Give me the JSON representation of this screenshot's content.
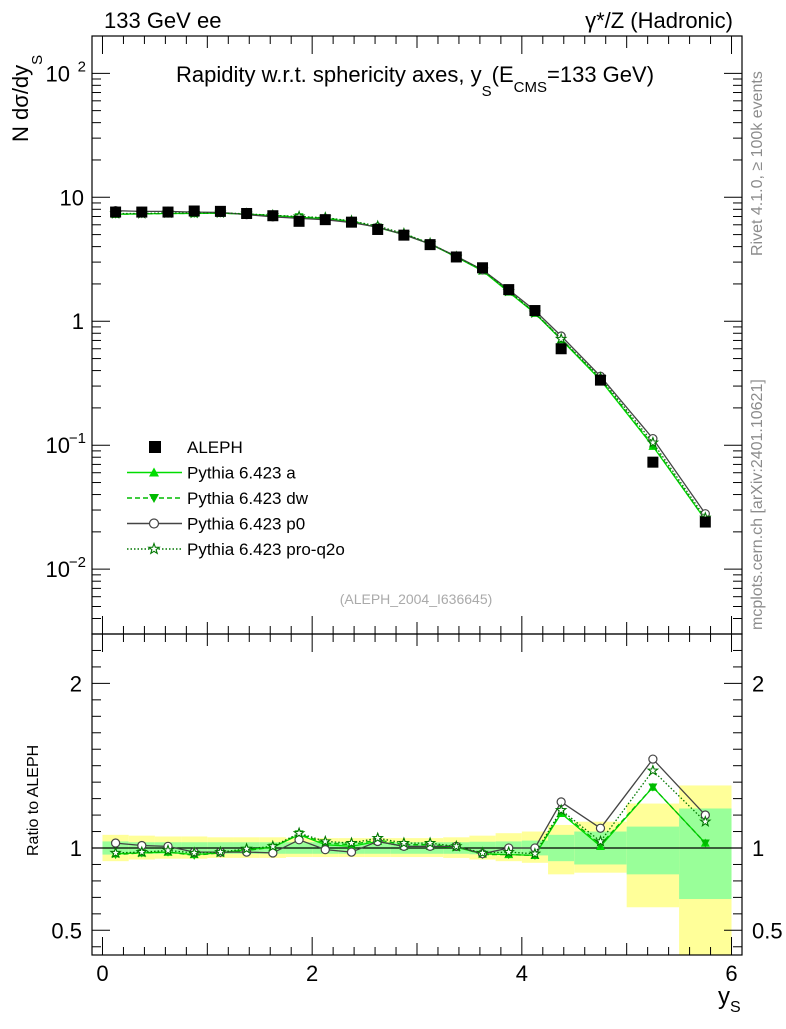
{
  "header": {
    "left": "133 GeV ee",
    "right": "γ*/Z (Hadronic)"
  },
  "side_labels": {
    "rivet": "Rivet 4.1.0, ≥ 100k events",
    "mcplots": "mcplots.cern.ch [arXiv:2401.10621]"
  },
  "chart_data": [
    {
      "type": "scatter",
      "title": "Rapidity w.r.t. sphericity axes, y_S (E_CMS=133 GeV)",
      "title_parts": {
        "main": "Rapidity w.r.t. sphericity axes, y",
        "sub_s": "S",
        "open": "(E",
        "sub_cms": "CMS",
        "close": "=133 GeV)"
      },
      "ylabel": "N  dσ/dy_S",
      "ylabel_parts": {
        "main": "N  dσ/dy",
        "sub": "S"
      },
      "yscale": "log",
      "ylim": [
        0.003,
        200
      ],
      "xlim": [
        -0.1,
        6.1
      ],
      "y_ticks": [
        0.01,
        0.1,
        1,
        10,
        100
      ],
      "y_tick_labels": [
        {
          "base": "10",
          "exp": "−2"
        },
        {
          "base": "10",
          "exp": "−1"
        },
        {
          "base": "1",
          "exp": ""
        },
        {
          "base": "10",
          "exp": ""
        },
        {
          "base": "10",
          "exp": "2"
        }
      ],
      "watermark": "(ALEPH_2004_I636645)",
      "legend_position": "lower-left",
      "x": [
        0.125,
        0.375,
        0.625,
        0.875,
        1.125,
        1.375,
        1.625,
        1.875,
        2.125,
        2.375,
        2.625,
        2.875,
        3.125,
        3.375,
        3.625,
        3.875,
        4.125,
        4.375,
        4.75,
        5.25,
        5.75
      ],
      "series": [
        {
          "name": "ALEPH",
          "style": "data",
          "values": [
            7.6,
            7.6,
            7.6,
            7.75,
            7.7,
            7.4,
            7.1,
            6.4,
            6.6,
            6.3,
            5.5,
            4.95,
            4.15,
            3.3,
            2.7,
            1.8,
            1.22,
            0.6,
            0.335,
            0.073,
            0.024
          ]
        },
        {
          "name": "Pythia 6.423 a",
          "style": "a",
          "color": "#00dd00",
          "values": [
            7.3,
            7.35,
            7.4,
            7.4,
            7.45,
            7.3,
            7.1,
            6.9,
            6.7,
            6.35,
            5.7,
            5.0,
            4.2,
            3.3,
            2.55,
            1.72,
            1.16,
            0.71,
            0.335,
            0.098,
            0.025
          ]
        },
        {
          "name": "Pythia 6.423 dw",
          "style": "dw",
          "color": "#00bb00",
          "values": [
            7.3,
            7.35,
            7.4,
            7.4,
            7.45,
            7.3,
            7.15,
            6.95,
            6.8,
            6.4,
            5.75,
            5.05,
            4.25,
            3.3,
            2.58,
            1.75,
            1.17,
            0.72,
            0.34,
            0.1,
            0.025
          ]
        },
        {
          "name": "Pythia 6.423 p0",
          "style": "p0",
          "color": "#444444",
          "values": [
            7.8,
            7.7,
            7.7,
            7.6,
            7.55,
            7.25,
            6.95,
            6.75,
            6.6,
            6.25,
            5.75,
            5.0,
            4.2,
            3.35,
            2.6,
            1.8,
            1.22,
            0.76,
            0.36,
            0.113,
            0.028
          ]
        },
        {
          "name": "Pythia 6.423 pro-q2o",
          "style": "q2o",
          "color": "#007700",
          "values": [
            7.4,
            7.4,
            7.5,
            7.45,
            7.5,
            7.35,
            7.15,
            7.0,
            6.85,
            6.45,
            5.85,
            5.1,
            4.25,
            3.3,
            2.6,
            1.75,
            1.17,
            0.72,
            0.35,
            0.105,
            0.026
          ]
        }
      ]
    },
    {
      "type": "scatter",
      "title": "",
      "ylabel": "Ratio to ALEPH",
      "xlabel": "y_S",
      "xlabel_parts": {
        "main": "y",
        "sub": "S"
      },
      "ylim": [
        0.35,
        2.3
      ],
      "xlim": [
        -0.1,
        6.1
      ],
      "x_ticks": [
        0,
        2,
        4,
        6
      ],
      "x_tick_labels": [
        "0",
        "2",
        "4",
        "6"
      ],
      "y_ticks": [
        0.5,
        1,
        2
      ],
      "y_tick_labels": [
        "0.5",
        "1",
        "2"
      ],
      "x": [
        0.125,
        0.375,
        0.625,
        0.875,
        1.125,
        1.375,
        1.625,
        1.875,
        2.125,
        2.375,
        2.625,
        2.875,
        3.125,
        3.375,
        3.625,
        3.875,
        4.125,
        4.375,
        4.75,
        5.25,
        5.75
      ],
      "bins": [
        [
          0,
          0.25
        ],
        [
          0.25,
          0.5
        ],
        [
          0.5,
          0.75
        ],
        [
          0.75,
          1.0
        ],
        [
          1.0,
          1.25
        ],
        [
          1.25,
          1.5
        ],
        [
          1.5,
          1.75
        ],
        [
          1.75,
          2.0
        ],
        [
          2.0,
          2.25
        ],
        [
          2.25,
          2.5
        ],
        [
          2.5,
          2.75
        ],
        [
          2.75,
          3.0
        ],
        [
          3.0,
          3.25
        ],
        [
          3.25,
          3.5
        ],
        [
          3.5,
          3.75
        ],
        [
          3.75,
          4.0
        ],
        [
          4.0,
          4.25
        ],
        [
          4.25,
          4.5
        ],
        [
          4.5,
          5.0
        ],
        [
          5.0,
          5.5
        ],
        [
          5.5,
          6.0
        ]
      ],
      "band_stat": [
        [
          0.96,
          1.04
        ],
        [
          0.965,
          1.035
        ],
        [
          0.965,
          1.035
        ],
        [
          0.965,
          1.035
        ],
        [
          0.965,
          1.035
        ],
        [
          0.965,
          1.035
        ],
        [
          0.965,
          1.035
        ],
        [
          0.965,
          1.035
        ],
        [
          0.965,
          1.035
        ],
        [
          0.965,
          1.035
        ],
        [
          0.965,
          1.035
        ],
        [
          0.965,
          1.035
        ],
        [
          0.965,
          1.035
        ],
        [
          0.965,
          1.035
        ],
        [
          0.962,
          1.038
        ],
        [
          0.96,
          1.04
        ],
        [
          0.955,
          1.045
        ],
        [
          0.92,
          1.08
        ],
        [
          0.9,
          1.1
        ],
        [
          0.84,
          1.13
        ],
        [
          0.69,
          1.24
        ]
      ],
      "band_total": [
        [
          0.92,
          1.08
        ],
        [
          0.93,
          1.075
        ],
        [
          0.935,
          1.07
        ],
        [
          0.935,
          1.07
        ],
        [
          0.94,
          1.065
        ],
        [
          0.94,
          1.065
        ],
        [
          0.94,
          1.065
        ],
        [
          0.945,
          1.06
        ],
        [
          0.945,
          1.06
        ],
        [
          0.945,
          1.06
        ],
        [
          0.945,
          1.06
        ],
        [
          0.945,
          1.06
        ],
        [
          0.945,
          1.06
        ],
        [
          0.94,
          1.065
        ],
        [
          0.93,
          1.075
        ],
        [
          0.92,
          1.09
        ],
        [
          0.91,
          1.1
        ],
        [
          0.84,
          1.14
        ],
        [
          0.85,
          1.16
        ],
        [
          0.64,
          1.27
        ],
        [
          0.35,
          1.38
        ]
      ],
      "series": [
        {
          "name": "Pythia 6.423 a",
          "style": "a",
          "color": "#00dd00",
          "values": [
            0.965,
            0.97,
            0.975,
            0.96,
            0.97,
            0.99,
            1.005,
            1.08,
            1.02,
            1.01,
            1.04,
            1.01,
            1.01,
            1.005,
            0.965,
            0.96,
            0.955,
            1.21,
            1.01,
            1.37,
            1.03
          ]
        },
        {
          "name": "Pythia 6.423 dw",
          "style": "dw",
          "color": "#00bb00",
          "values": [
            0.96,
            0.97,
            0.975,
            0.955,
            0.97,
            0.985,
            1.005,
            1.085,
            1.03,
            1.02,
            1.05,
            1.02,
            1.02,
            1.01,
            0.96,
            0.96,
            0.955,
            1.22,
            1.02,
            1.37,
            1.03
          ]
        },
        {
          "name": "Pythia 6.423 p0",
          "style": "p0",
          "color": "#444444",
          "values": [
            1.03,
            1.015,
            1.01,
            0.975,
            0.975,
            0.975,
            0.97,
            1.05,
            0.99,
            0.975,
            1.04,
            1.01,
            1.01,
            1.01,
            0.965,
            1.0,
            1.0,
            1.28,
            1.12,
            1.54,
            1.2
          ]
        },
        {
          "name": "Pythia 6.423 pro-q2o",
          "style": "q2o",
          "color": "#007700",
          "values": [
            0.97,
            0.975,
            0.985,
            0.97,
            0.975,
            0.995,
            1.01,
            1.09,
            1.04,
            1.03,
            1.06,
            1.03,
            1.03,
            1.01,
            0.97,
            0.975,
            0.965,
            1.23,
            1.04,
            1.47,
            1.16
          ]
        }
      ]
    }
  ]
}
